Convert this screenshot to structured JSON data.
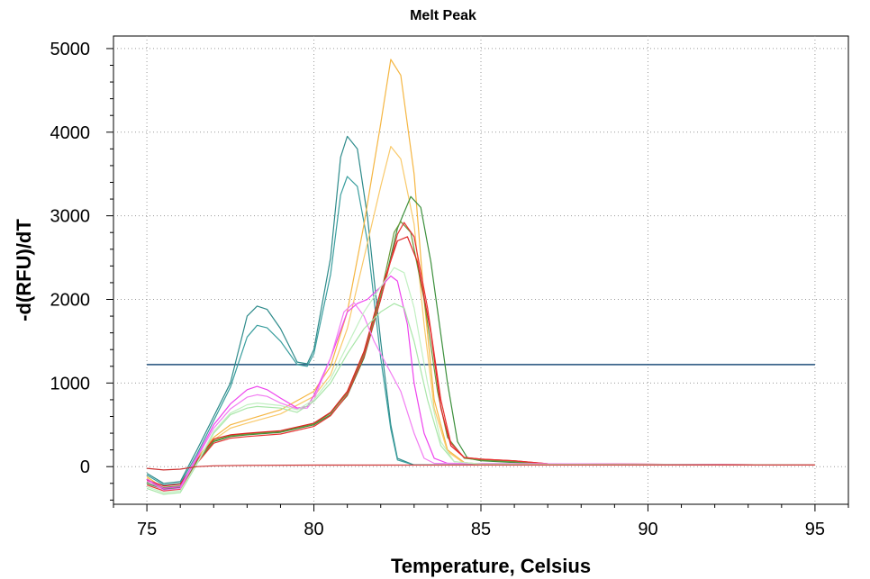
{
  "chart_data": {
    "type": "line",
    "title": "Melt Peak",
    "xlabel": "Temperature, Celsius",
    "ylabel": "-d(RFU)/dT",
    "xlim": [
      74,
      96
    ],
    "ylim": [
      -450,
      5150
    ],
    "x_ticks": [
      75,
      80,
      85,
      90,
      95
    ],
    "y_ticks": [
      0,
      1000,
      2000,
      3000,
      4000,
      5000
    ],
    "grid": true,
    "threshold": {
      "y": 1220,
      "color": "#1f4e79"
    },
    "series": [
      {
        "color": "#2e8b8b",
        "points": [
          [
            75,
            -80
          ],
          [
            75.5,
            -200
          ],
          [
            76,
            -180
          ],
          [
            76.5,
            200
          ],
          [
            77,
            600
          ],
          [
            77.5,
            1000
          ],
          [
            78,
            1800
          ],
          [
            78.3,
            1920
          ],
          [
            78.6,
            1880
          ],
          [
            79,
            1650
          ],
          [
            79.5,
            1250
          ],
          [
            79.8,
            1230
          ],
          [
            80,
            1400
          ],
          [
            80.5,
            2500
          ],
          [
            80.8,
            3700
          ],
          [
            81,
            3950
          ],
          [
            81.3,
            3800
          ],
          [
            81.6,
            3000
          ],
          [
            82,
            1500
          ],
          [
            82.3,
            500
          ],
          [
            82.5,
            100
          ],
          [
            83,
            20
          ],
          [
            85,
            20
          ],
          [
            95,
            20
          ]
        ]
      },
      {
        "color": "#3a9e9e",
        "points": [
          [
            75,
            -100
          ],
          [
            75.5,
            -220
          ],
          [
            76,
            -200
          ],
          [
            76.5,
            150
          ],
          [
            77,
            550
          ],
          [
            77.5,
            950
          ],
          [
            78,
            1550
          ],
          [
            78.3,
            1690
          ],
          [
            78.6,
            1660
          ],
          [
            79,
            1500
          ],
          [
            79.5,
            1220
          ],
          [
            79.8,
            1200
          ],
          [
            80,
            1350
          ],
          [
            80.5,
            2300
          ],
          [
            80.8,
            3250
          ],
          [
            81,
            3470
          ],
          [
            81.3,
            3350
          ],
          [
            81.6,
            2700
          ],
          [
            82,
            1300
          ],
          [
            82.3,
            450
          ],
          [
            82.5,
            80
          ],
          [
            83,
            20
          ],
          [
            85,
            20
          ],
          [
            95,
            20
          ]
        ]
      },
      {
        "color": "#f5b642",
        "points": [
          [
            75,
            -120
          ],
          [
            75.5,
            -260
          ],
          [
            76,
            -240
          ],
          [
            76.5,
            100
          ],
          [
            77,
            350
          ],
          [
            77.5,
            500
          ],
          [
            78,
            560
          ],
          [
            79,
            680
          ],
          [
            80,
            900
          ],
          [
            80.5,
            1200
          ],
          [
            81,
            1850
          ],
          [
            81.5,
            2900
          ],
          [
            82,
            4100
          ],
          [
            82.3,
            4870
          ],
          [
            82.6,
            4680
          ],
          [
            83,
            3500
          ],
          [
            83.3,
            2000
          ],
          [
            83.6,
            800
          ],
          [
            84,
            200
          ],
          [
            84.5,
            50
          ],
          [
            85,
            30
          ],
          [
            95,
            20
          ]
        ]
      },
      {
        "color": "#f9c96a",
        "points": [
          [
            75,
            -140
          ],
          [
            75.5,
            -280
          ],
          [
            76,
            -260
          ],
          [
            76.5,
            90
          ],
          [
            77,
            320
          ],
          [
            77.5,
            460
          ],
          [
            78,
            520
          ],
          [
            79,
            630
          ],
          [
            80,
            840
          ],
          [
            80.5,
            1100
          ],
          [
            81,
            1650
          ],
          [
            81.5,
            2500
          ],
          [
            82,
            3350
          ],
          [
            82.3,
            3830
          ],
          [
            82.6,
            3680
          ],
          [
            83,
            2900
          ],
          [
            83.3,
            1700
          ],
          [
            83.6,
            700
          ],
          [
            84,
            180
          ],
          [
            84.5,
            40
          ],
          [
            85,
            30
          ],
          [
            95,
            20
          ]
        ]
      },
      {
        "color": "#3b8f3b",
        "points": [
          [
            75,
            -200
          ],
          [
            75.5,
            -270
          ],
          [
            76,
            -250
          ],
          [
            76.5,
            50
          ],
          [
            77,
            300
          ],
          [
            77.5,
            360
          ],
          [
            78,
            380
          ],
          [
            79,
            410
          ],
          [
            80,
            500
          ],
          [
            80.5,
            620
          ],
          [
            81,
            850
          ],
          [
            81.5,
            1300
          ],
          [
            82,
            2000
          ],
          [
            82.5,
            2850
          ],
          [
            82.9,
            3230
          ],
          [
            83.2,
            3100
          ],
          [
            83.5,
            2450
          ],
          [
            84,
            1000
          ],
          [
            84.3,
            300
          ],
          [
            84.6,
            100
          ],
          [
            85,
            70
          ],
          [
            86,
            50
          ],
          [
            87,
            30
          ],
          [
            95,
            20
          ]
        ]
      },
      {
        "color": "#6a9a3a",
        "points": [
          [
            75,
            -180
          ],
          [
            75.5,
            -250
          ],
          [
            76,
            -230
          ],
          [
            76.5,
            60
          ],
          [
            77,
            310
          ],
          [
            77.5,
            370
          ],
          [
            78,
            390
          ],
          [
            79,
            420
          ],
          [
            80,
            510
          ],
          [
            80.5,
            640
          ],
          [
            81,
            880
          ],
          [
            81.5,
            1350
          ],
          [
            82,
            2050
          ],
          [
            82.4,
            2800
          ],
          [
            82.6,
            2930
          ],
          [
            82.9,
            2800
          ],
          [
            83.3,
            2000
          ],
          [
            83.7,
            900
          ],
          [
            84,
            350
          ],
          [
            84.5,
            100
          ],
          [
            85,
            80
          ],
          [
            86,
            60
          ],
          [
            87,
            30
          ],
          [
            95,
            20
          ]
        ]
      },
      {
        "color": "#dd2222",
        "points": [
          [
            75,
            -160
          ],
          [
            75.5,
            -230
          ],
          [
            76,
            -210
          ],
          [
            76.5,
            80
          ],
          [
            77,
            330
          ],
          [
            77.5,
            380
          ],
          [
            78,
            400
          ],
          [
            79,
            430
          ],
          [
            80,
            520
          ],
          [
            80.5,
            650
          ],
          [
            81,
            900
          ],
          [
            81.5,
            1380
          ],
          [
            82,
            2100
          ],
          [
            82.5,
            2700
          ],
          [
            82.8,
            2750
          ],
          [
            83.1,
            2450
          ],
          [
            83.5,
            1600
          ],
          [
            83.8,
            700
          ],
          [
            84.1,
            250
          ],
          [
            84.5,
            110
          ],
          [
            85,
            90
          ],
          [
            86,
            70
          ],
          [
            87,
            35
          ],
          [
            95,
            20
          ]
        ]
      },
      {
        "color": "#e83333",
        "points": [
          [
            75,
            -220
          ],
          [
            75.5,
            -290
          ],
          [
            76,
            -270
          ],
          [
            76.5,
            40
          ],
          [
            77,
            280
          ],
          [
            77.5,
            340
          ],
          [
            78,
            360
          ],
          [
            79,
            390
          ],
          [
            80,
            480
          ],
          [
            80.5,
            610
          ],
          [
            81,
            860
          ],
          [
            81.5,
            1320
          ],
          [
            82,
            2000
          ],
          [
            82.5,
            2780
          ],
          [
            82.7,
            2920
          ],
          [
            83,
            2750
          ],
          [
            83.4,
            1900
          ],
          [
            83.8,
            800
          ],
          [
            84.1,
            280
          ],
          [
            84.5,
            110
          ],
          [
            85,
            90
          ],
          [
            86,
            70
          ],
          [
            87,
            35
          ],
          [
            95,
            20
          ]
        ]
      },
      {
        "color": "#ee44ee",
        "points": [
          [
            75,
            -150
          ],
          [
            75.5,
            -260
          ],
          [
            76,
            -240
          ],
          [
            76.5,
            120
          ],
          [
            77,
            500
          ],
          [
            77.5,
            750
          ],
          [
            78,
            920
          ],
          [
            78.3,
            960
          ],
          [
            78.6,
            920
          ],
          [
            79,
            820
          ],
          [
            79.5,
            700
          ],
          [
            79.8,
            720
          ],
          [
            80,
            850
          ],
          [
            80.5,
            1300
          ],
          [
            81,
            1850
          ],
          [
            81.3,
            1950
          ],
          [
            81.6,
            2000
          ],
          [
            82,
            2150
          ],
          [
            82.3,
            2280
          ],
          [
            82.5,
            2220
          ],
          [
            82.8,
            1700
          ],
          [
            83,
            1000
          ],
          [
            83.3,
            400
          ],
          [
            83.6,
            100
          ],
          [
            84,
            40
          ],
          [
            95,
            20
          ]
        ]
      },
      {
        "color": "#f27df2",
        "points": [
          [
            75,
            -170
          ],
          [
            75.5,
            -280
          ],
          [
            76,
            -260
          ],
          [
            76.5,
            100
          ],
          [
            77,
            460
          ],
          [
            77.5,
            690
          ],
          [
            78,
            830
          ],
          [
            78.3,
            860
          ],
          [
            78.6,
            840
          ],
          [
            79,
            760
          ],
          [
            79.5,
            690
          ],
          [
            79.8,
            700
          ],
          [
            80,
            800
          ],
          [
            80.5,
            1300
          ],
          [
            80.9,
            1850
          ],
          [
            81.2,
            1960
          ],
          [
            81.5,
            1800
          ],
          [
            81.8,
            1500
          ],
          [
            82.2,
            1200
          ],
          [
            82.6,
            900
          ],
          [
            83,
            400
          ],
          [
            83.3,
            100
          ],
          [
            83.6,
            40
          ],
          [
            95,
            20
          ]
        ]
      },
      {
        "color": "#a8e6a8",
        "points": [
          [
            75,
            -260
          ],
          [
            75.5,
            -330
          ],
          [
            76,
            -310
          ],
          [
            76.5,
            30
          ],
          [
            77,
            400
          ],
          [
            77.5,
            620
          ],
          [
            78,
            700
          ],
          [
            78.3,
            720
          ],
          [
            79,
            700
          ],
          [
            79.5,
            650
          ],
          [
            80,
            780
          ],
          [
            80.5,
            1000
          ],
          [
            81,
            1350
          ],
          [
            81.5,
            1650
          ],
          [
            82,
            1850
          ],
          [
            82.4,
            1950
          ],
          [
            82.7,
            1900
          ],
          [
            83,
            1500
          ],
          [
            83.4,
            800
          ],
          [
            83.8,
            250
          ],
          [
            84.2,
            60
          ],
          [
            85,
            30
          ],
          [
            95,
            20
          ]
        ]
      },
      {
        "color": "#c2f0c2",
        "points": [
          [
            75,
            -240
          ],
          [
            75.5,
            -310
          ],
          [
            76,
            -290
          ],
          [
            76.5,
            40
          ],
          [
            77,
            420
          ],
          [
            77.5,
            640
          ],
          [
            78,
            740
          ],
          [
            78.3,
            760
          ],
          [
            79,
            730
          ],
          [
            79.5,
            680
          ],
          [
            80,
            800
          ],
          [
            80.5,
            1050
          ],
          [
            81,
            1450
          ],
          [
            81.5,
            1850
          ],
          [
            82,
            2150
          ],
          [
            82.4,
            2380
          ],
          [
            82.7,
            2320
          ],
          [
            83,
            1900
          ],
          [
            83.4,
            1000
          ],
          [
            83.8,
            300
          ],
          [
            84.2,
            60
          ],
          [
            85,
            30
          ],
          [
            95,
            20
          ]
        ]
      },
      {
        "color": "#cc3333",
        "points": [
          [
            75,
            -20
          ],
          [
            75.5,
            -40
          ],
          [
            76,
            -30
          ],
          [
            76.5,
            0
          ],
          [
            77,
            10
          ],
          [
            78,
            15
          ],
          [
            80,
            18
          ],
          [
            85,
            20
          ],
          [
            90,
            20
          ],
          [
            95,
            20
          ]
        ]
      }
    ]
  }
}
